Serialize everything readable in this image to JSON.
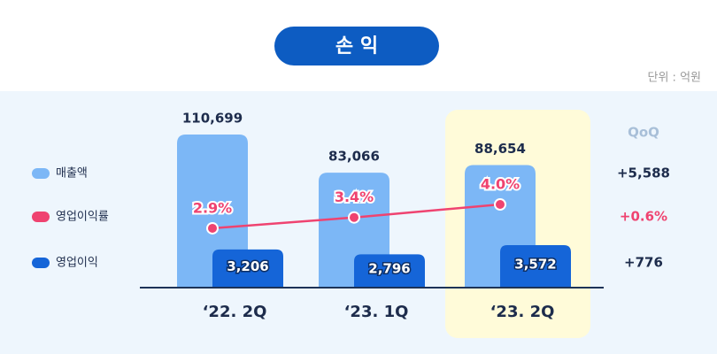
{
  "chart_data": {
    "type": "bar",
    "title": "손 익",
    "unit": "단위 : 억원",
    "categories": [
      "‘22. 2Q",
      "‘23. 1Q",
      "‘23. 2Q"
    ],
    "highlight": 2,
    "series": [
      {
        "name": "매출액",
        "type": "bar",
        "color": "#7cb7f6",
        "values": [
          110699,
          83066,
          88654
        ],
        "value_labels": [
          "110,699",
          "83,066",
          "88,654"
        ]
      },
      {
        "name": "영업이익률",
        "type": "line",
        "color": "#ef4370",
        "values": [
          2.9,
          3.4,
          4.0
        ],
        "value_labels": [
          "2.9%",
          "3.4%",
          "4.0%"
        ]
      },
      {
        "name": "영업이익",
        "type": "bar",
        "color": "#1565d8",
        "values": [
          3206,
          2796,
          3572
        ],
        "value_labels": [
          "3,206",
          "2,796",
          "3,572"
        ]
      }
    ],
    "qoq": {
      "label": "QoQ",
      "values": [
        "+5,588",
        "+0.6%",
        "+776"
      ]
    }
  }
}
